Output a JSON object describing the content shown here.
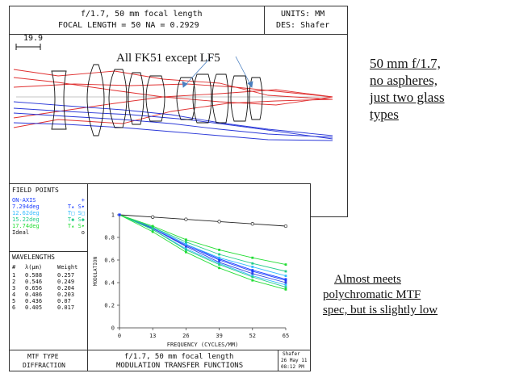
{
  "lens_header": {
    "title": "f/1.7, 50 mm focal length",
    "specs": "FOCAL LENGTH = 50  NA = 0.2929",
    "units": "UNITS: MM",
    "designer": "DES: Shafer",
    "scale_value": "19.9"
  },
  "lens_annotation": "All FK51 except LF5",
  "side_note_top": [
    "50 mm f/1.7,",
    "no aspheres,",
    "just two glass",
    "types"
  ],
  "side_note_bottom": [
    "Almost meets",
    "polychromatic MTF",
    "spec, but is slightly low"
  ],
  "field_points": {
    "title": "FIELD POINTS",
    "items": [
      {
        "label": "ON-AXIS",
        "marks": "+",
        "color": "#1a3cff"
      },
      {
        "label": "7.294deg",
        "marks": "T▴ S▾",
        "color": "#1a3cff"
      },
      {
        "label": "12.62deg",
        "marks": "T□ S□",
        "color": "#33bbff"
      },
      {
        "label": "15.22deg",
        "marks": "T◆ S◆",
        "color": "#22cc88"
      },
      {
        "label": "17.74deg",
        "marks": "T▴ S▾",
        "color": "#22dd33"
      },
      {
        "label": "Ideal",
        "marks": "o",
        "color": "#222222"
      }
    ]
  },
  "wavelengths": {
    "title": "WAVELENGTHS",
    "col_num": "#",
    "col_lambda": "λ(μm)",
    "col_weight": "Weight",
    "rows": [
      {
        "n": "1",
        "lambda": "0.588",
        "weight": "0.257"
      },
      {
        "n": "2",
        "lambda": "0.546",
        "weight": "0.249"
      },
      {
        "n": "3",
        "lambda": "0.656",
        "weight": "0.204"
      },
      {
        "n": "4",
        "lambda": "0.486",
        "weight": "0.203"
      },
      {
        "n": "5",
        "lambda": "0.436",
        "weight": "0.07"
      },
      {
        "n": "6",
        "lambda": "0.405",
        "weight": "0.017"
      }
    ]
  },
  "mtf_footer": {
    "type_label": "MTF TYPE",
    "type_value": "DIFFRACTION",
    "title": "f/1.7, 50 mm focal length",
    "subtitle": "MODULATION TRANSFER FUNCTIONS",
    "author": "Shafer",
    "date": "26 May 11",
    "time": "08:12 PM"
  },
  "chart_data": {
    "type": "line",
    "xlabel": "FREQUENCY (CYCLES/MM)",
    "ylabel": "MODULATION",
    "xlim": [
      0,
      65
    ],
    "ylim": [
      0,
      1
    ],
    "x_ticks": [
      "0",
      "13",
      "26",
      "39",
      "52",
      "65"
    ],
    "y_ticks": [
      "0",
      "0.2",
      "0.4",
      "0.6",
      "0.8",
      "1"
    ],
    "x": [
      0,
      13,
      26,
      39,
      52,
      65
    ],
    "series": [
      {
        "name": "Ideal",
        "color": "#222222",
        "values": [
          1.0,
          0.98,
          0.96,
          0.94,
          0.92,
          0.9
        ]
      },
      {
        "name": "ON-AXIS",
        "color": "#1a3cff",
        "values": [
          1.0,
          0.89,
          0.74,
          0.61,
          0.51,
          0.43
        ]
      },
      {
        "color": "#1a3cff",
        "values": [
          1.0,
          0.88,
          0.73,
          0.6,
          0.5,
          0.42
        ]
      },
      {
        "color": "#3344dd",
        "values": [
          1.0,
          0.88,
          0.72,
          0.58,
          0.48,
          0.4
        ]
      },
      {
        "color": "#33bbff",
        "values": [
          1.0,
          0.89,
          0.74,
          0.62,
          0.54,
          0.46
        ]
      },
      {
        "color": "#33bbff",
        "values": [
          1.0,
          0.87,
          0.7,
          0.57,
          0.46,
          0.38
        ]
      },
      {
        "color": "#22cc88",
        "values": [
          1.0,
          0.89,
          0.76,
          0.65,
          0.57,
          0.5
        ]
      },
      {
        "color": "#22cc88",
        "values": [
          1.0,
          0.87,
          0.69,
          0.56,
          0.45,
          0.36
        ]
      },
      {
        "color": "#22dd33",
        "values": [
          1.0,
          0.9,
          0.78,
          0.69,
          0.62,
          0.56
        ]
      },
      {
        "color": "#22dd33",
        "values": [
          1.0,
          0.85,
          0.67,
          0.53,
          0.42,
          0.34
        ]
      }
    ]
  }
}
